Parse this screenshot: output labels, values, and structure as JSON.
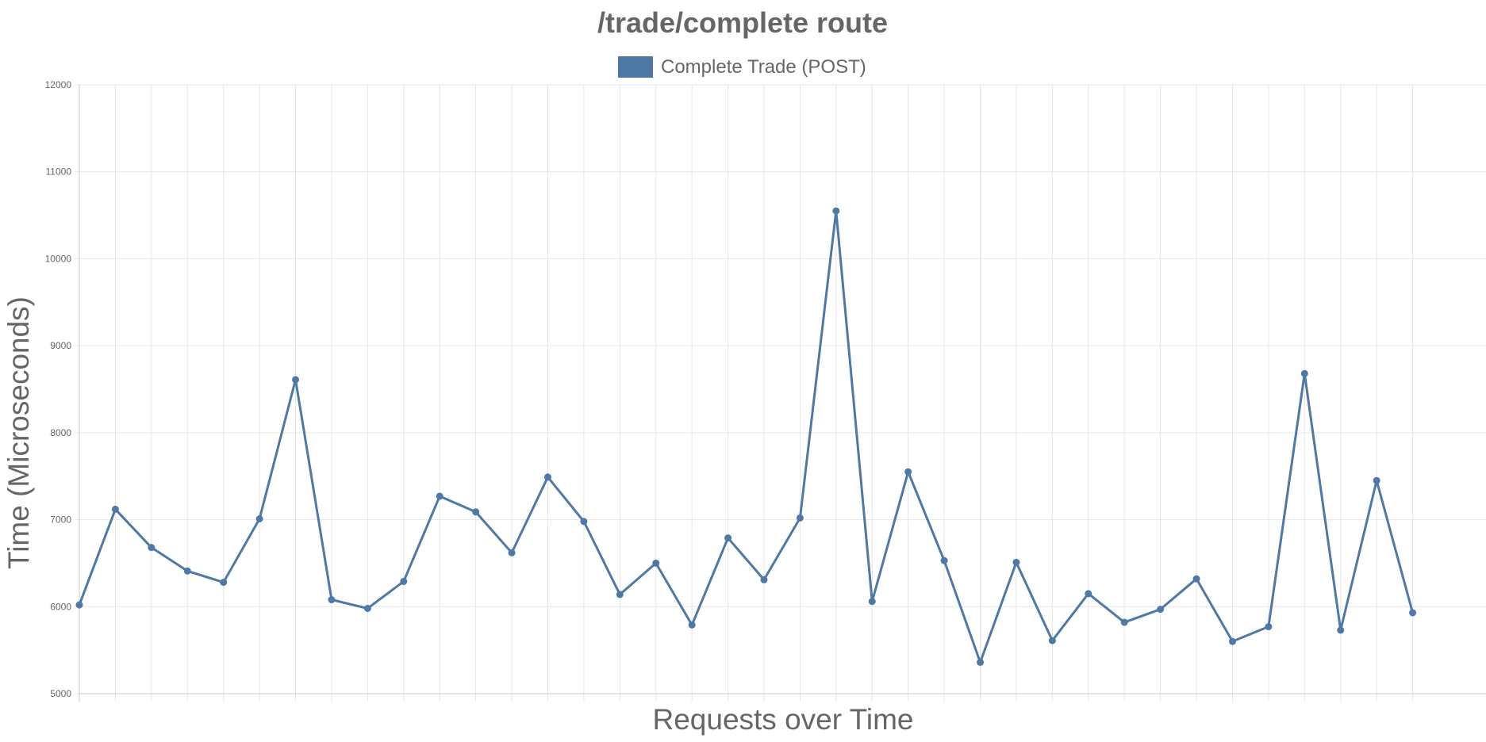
{
  "chart_data": {
    "type": "line",
    "title": "/trade/complete route",
    "xlabel": "Requests over Time",
    "ylabel": "Time (Microseconds)",
    "ylim": [
      5000,
      12000
    ],
    "yticks": [
      5000,
      6000,
      7000,
      8000,
      9000,
      10000,
      11000,
      12000
    ],
    "grid": true,
    "legend": "top-center",
    "series": [
      {
        "name": "Complete Trade (POST)",
        "color": "#4e79a7",
        "values": [
          6020,
          7120,
          6680,
          6410,
          6280,
          7010,
          8610,
          6080,
          5980,
          6290,
          7270,
          7090,
          6620,
          7490,
          6980,
          6140,
          6500,
          5790,
          6790,
          6310,
          7020,
          10550,
          6060,
          7550,
          6530,
          5360,
          6510,
          5610,
          6150,
          5820,
          5970,
          6320,
          5600,
          5770,
          8680,
          5730,
          7450,
          5930
        ]
      }
    ]
  }
}
